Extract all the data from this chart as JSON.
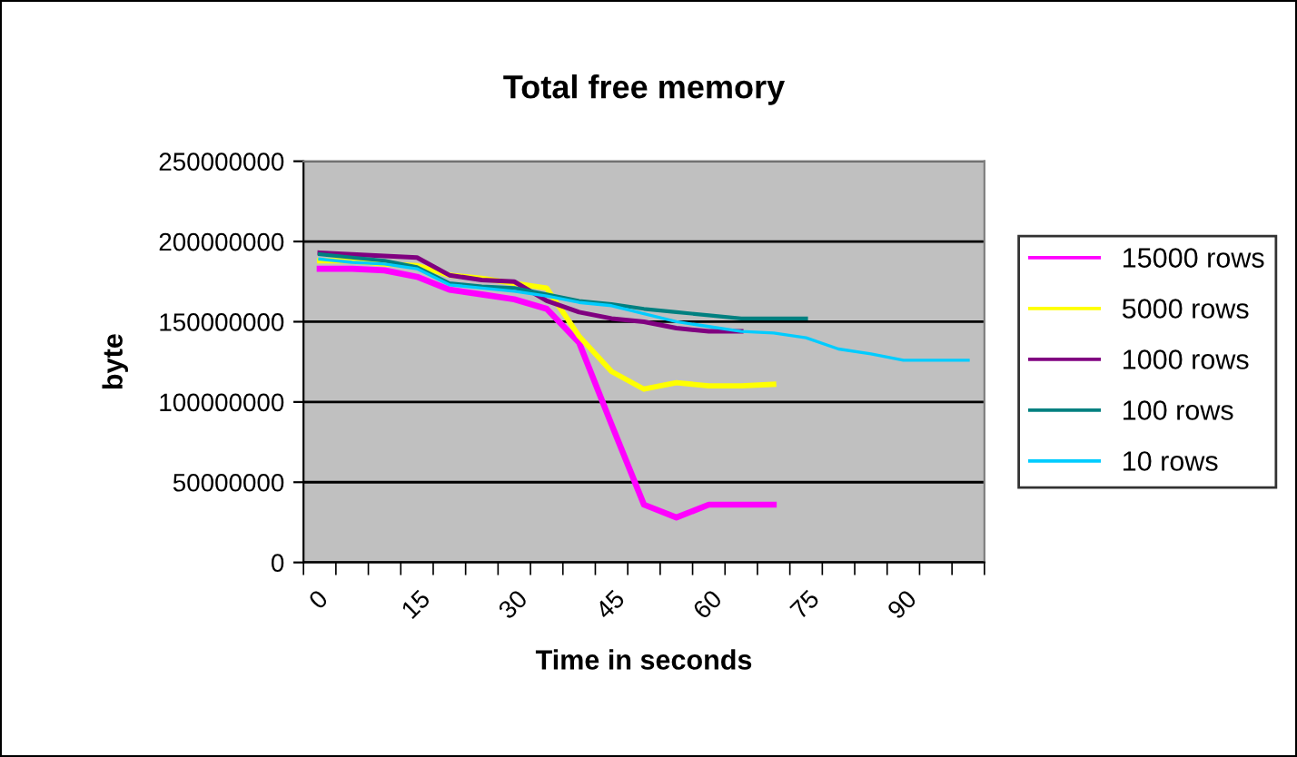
{
  "chart_data": {
    "type": "line",
    "title": "Total free memory",
    "xlabel": "Time in seconds",
    "ylabel": "byte",
    "categories": [
      "0",
      null,
      null,
      "15",
      null,
      null,
      "30",
      null,
      null,
      "45",
      null,
      null,
      "60",
      null,
      null,
      "75",
      null,
      null,
      "90",
      null,
      null
    ],
    "series": [
      {
        "name": "15000 rows",
        "color": "#ff00ff",
        "values": [
          183000000,
          183000000,
          182000000,
          178000000,
          170000000,
          167000000,
          164000000,
          158000000,
          137000000,
          86000000,
          36000000,
          28000000,
          36000000,
          36000000,
          36000000,
          null,
          null,
          null,
          null,
          null,
          null
        ]
      },
      {
        "name": "5000 rows",
        "color": "#ffff00",
        "values": [
          188000000,
          188000000,
          186000000,
          185000000,
          179000000,
          177000000,
          174000000,
          171000000,
          141000000,
          119000000,
          108000000,
          112000000,
          110000000,
          110000000,
          111000000,
          null,
          null,
          null,
          null,
          null,
          null
        ]
      },
      {
        "name": "1000 rows",
        "color": "#800080",
        "values": [
          193000000,
          192000000,
          191000000,
          190000000,
          179000000,
          176000000,
          175000000,
          163000000,
          156000000,
          152000000,
          150000000,
          146000000,
          144000000,
          144000000,
          null,
          null,
          null,
          null,
          null,
          null,
          null
        ]
      },
      {
        "name": "100 rows",
        "color": "#008080",
        "values": [
          192000000,
          190000000,
          188000000,
          184000000,
          174000000,
          172000000,
          171000000,
          167000000,
          163000000,
          161000000,
          158000000,
          156000000,
          154000000,
          152000000,
          152000000,
          152000000,
          null,
          null,
          null,
          null,
          null
        ]
      },
      {
        "name": "10 rows",
        "color": "#00ccff",
        "values": [
          189000000,
          187000000,
          186000000,
          183000000,
          173000000,
          171000000,
          169000000,
          166000000,
          162000000,
          160000000,
          155000000,
          150000000,
          147000000,
          144000000,
          143000000,
          140000000,
          133000000,
          130000000,
          126000000,
          126000000,
          126000000
        ]
      }
    ],
    "ylim": [
      0,
      250000000
    ],
    "yticks": [
      0,
      50000000,
      100000000,
      150000000,
      200000000,
      250000000
    ],
    "grid": "y",
    "legend": "right",
    "marker": "none",
    "line_style": "solid"
  }
}
